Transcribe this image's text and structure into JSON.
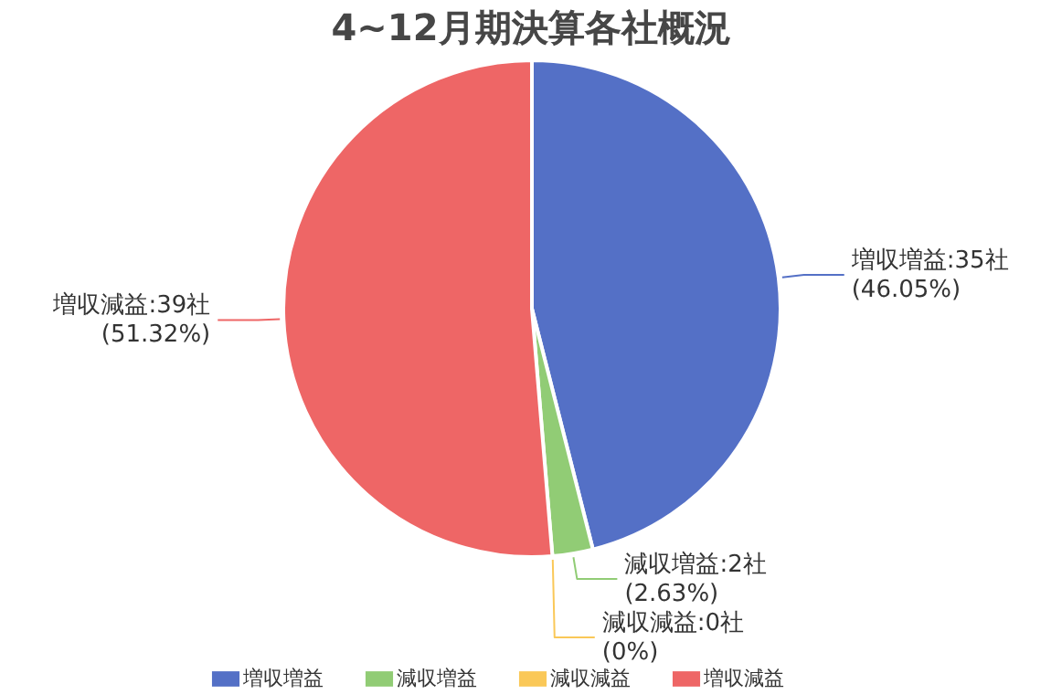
{
  "chart_data": {
    "type": "pie",
    "title": "4~12月期決算各社概況",
    "categories": [
      "増収増益",
      "減収増益",
      "減収減益",
      "増収減益"
    ],
    "values": [
      35,
      2,
      0,
      39
    ],
    "colors": [
      "#5470c6",
      "#91cc75",
      "#fac858",
      "#ee6666"
    ],
    "value_labels": [
      "増収増益:35社\n(46.05%)",
      "減収増益:2社\n(2.63%)",
      "減収減益:0社\n(0%)",
      "増収減益:39社\n(51.32%)"
    ],
    "legend": "bottom"
  }
}
